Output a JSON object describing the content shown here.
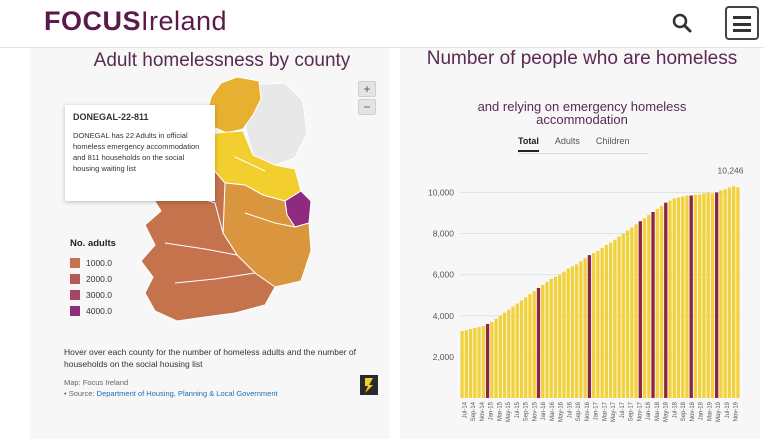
{
  "header": {
    "logo_bold": "FOCUS",
    "logo_regular": "Ireland",
    "search_icon": "search-icon",
    "menu_icon": "hamburger-menu-icon"
  },
  "map": {
    "title": "Adult homelessness by county",
    "zoom_in": "+",
    "zoom_out": "−",
    "tooltip": {
      "title": "DONEGAL-22-811",
      "body": "DONEGAL has 22 Adults in official homeless emergency accommodation and 811 households on the social housing waiting list"
    },
    "legend": {
      "title": "No. adults",
      "items": [
        {
          "label": "1000.0",
          "color": "#c4734d"
        },
        {
          "label": "2000.0",
          "color": "#b35b5b"
        },
        {
          "label": "3000.0",
          "color": "#a4456a"
        },
        {
          "label": "4000.0",
          "color": "#8e2f7d"
        }
      ]
    },
    "hover_text": "Hover over each county for the number of homeless adults and the number of households on the social housing list",
    "credit_map": "Map: Focus Ireland",
    "credit_source_prefix": "• Source:",
    "credit_source_link": "Department of Housing, Planning & Local Government",
    "colors": {
      "donegal": "#e8b030",
      "north_grey": "#e8e8e8",
      "yellow": "#f2cf2e",
      "orange": "#d9963e",
      "brown": "#c4734d",
      "dublin": "#8e2a80"
    }
  },
  "chart": {
    "title": "Number of people who are homeless",
    "subtitle": "and relying on emergency homeless accommodation",
    "tabs": [
      "Total",
      "Adults",
      "Children"
    ],
    "active_tab": "Total",
    "bar_color": "#f2d23a",
    "highlight_color": "#8e2440"
  },
  "chart_data": {
    "type": "bar",
    "title": "Number of people who are homeless",
    "subtitle": "and relying on emergency homeless accommodation",
    "ylim": [
      0,
      10800
    ],
    "yticks": [
      "2,000",
      "4,000",
      "6,000",
      "8,000",
      "10,000"
    ],
    "ytick_values": [
      2000,
      4000,
      6000,
      8000,
      10000
    ],
    "xtick_labels": [
      "Jul-14",
      "Sep-14",
      "Nov-14",
      "Jan-15",
      "Mar-15",
      "May-15",
      "Jul-15",
      "Sep-15",
      "Nov-15",
      "Jan-16",
      "Mar-16",
      "May-16",
      "Jul-16",
      "Sep-16",
      "Nov-16",
      "Jan-17",
      "Mar-17",
      "May-17",
      "Jul-17",
      "Sep-17",
      "Nov-17",
      "Jan-18",
      "Mar-18",
      "May-18",
      "Jul-18",
      "Sep-18",
      "Nov-18",
      "Jan-19",
      "Mar-19",
      "May-19",
      "Jul-19",
      "Nov-19"
    ],
    "annotation": "10,246",
    "values": [
      3258,
      3300,
      3350,
      3400,
      3450,
      3500,
      3600,
      3700,
      3850,
      4000,
      4150,
      4300,
      4450,
      4600,
      4750,
      4900,
      5050,
      5200,
      5350,
      5500,
      5650,
      5800,
      5900,
      6000,
      6150,
      6300,
      6400,
      6500,
      6650,
      6800,
      6950,
      7050,
      7150,
      7300,
      7450,
      7550,
      7700,
      7850,
      8000,
      8150,
      8300,
      8450,
      8600,
      8750,
      8900,
      9050,
      9200,
      9350,
      9500,
      9600,
      9700,
      9750,
      9800,
      9850,
      9850,
      9900,
      9900,
      9950,
      10000,
      9950,
      10000,
      10100,
      10150,
      10246,
      10300,
      10250
    ],
    "highlight_indices": [
      6,
      18,
      30,
      42,
      45,
      48,
      54,
      60
    ]
  }
}
